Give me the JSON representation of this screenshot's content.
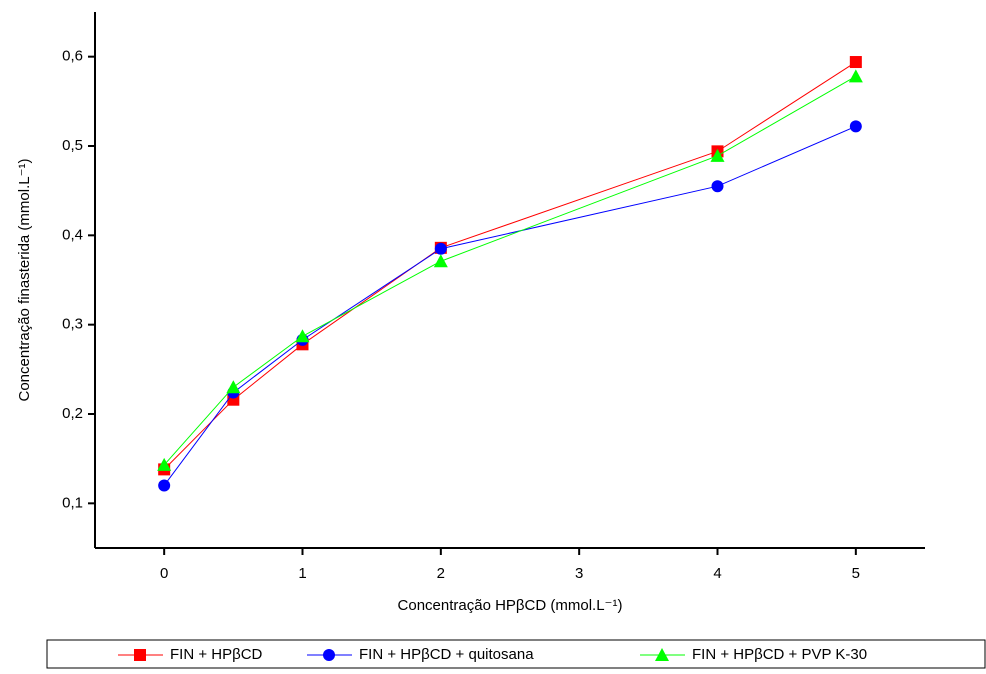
{
  "chart_data": {
    "type": "line",
    "xlabel": "Concentração HPβCD (mmol.L⁻¹)",
    "ylabel": "Concentração finasterida (mmol.L⁻¹)",
    "x": [
      0,
      0.5,
      1,
      2,
      4,
      5
    ],
    "series": [
      {
        "name": "FIN + HPβCD",
        "color": "#ff0000",
        "marker": "square",
        "values": [
          0.138,
          0.216,
          0.278,
          0.386,
          0.494,
          0.594
        ]
      },
      {
        "name": "FIN + HPβCD + quitosana",
        "color": "#0000ff",
        "marker": "circle",
        "values": [
          0.12,
          0.224,
          0.283,
          0.385,
          0.455,
          0.522
        ]
      },
      {
        "name": "FIN + HPβCD + PVP K-30",
        "color": "#00ff00",
        "marker": "triangle",
        "values": [
          0.143,
          0.23,
          0.287,
          0.371,
          0.489,
          0.578
        ]
      }
    ],
    "xlim": [
      -0.5,
      5.5
    ],
    "xticks": [
      0,
      1,
      2,
      3,
      4,
      5
    ],
    "ylim": [
      0.05,
      0.65
    ],
    "yticks": [
      {
        "value": 0.1,
        "label": "0,1"
      },
      {
        "value": 0.2,
        "label": "0,2"
      },
      {
        "value": 0.3,
        "label": "0,3"
      },
      {
        "value": 0.4,
        "label": "0,4"
      },
      {
        "value": 0.5,
        "label": "0,5"
      },
      {
        "value": 0.6,
        "label": "0,6"
      }
    ],
    "grid": false
  }
}
